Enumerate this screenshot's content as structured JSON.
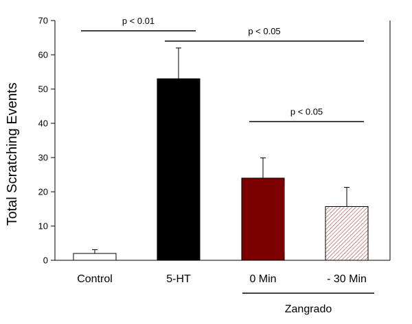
{
  "chart_data": {
    "type": "bar",
    "ylabel": "Total Scratching Events",
    "xlabel": "",
    "ylim": [
      0,
      70
    ],
    "yticks": [
      0,
      10,
      20,
      30,
      40,
      50,
      60,
      70
    ],
    "grid": false,
    "categories": [
      "Control",
      "5-HT",
      "0 Min",
      "- 30 Min"
    ],
    "values": [
      2,
      53,
      24,
      15.7
    ],
    "error_upper": [
      3.1,
      62,
      29.9,
      21.3
    ],
    "bar_styles": [
      {
        "fill": "#ffffff",
        "pattern": "none"
      },
      {
        "fill": "#000000",
        "pattern": "none"
      },
      {
        "fill": "#7d0000",
        "pattern": "none"
      },
      {
        "fill": "#ffffff",
        "pattern": "diagonal-hatch",
        "hatch_color": "#b04040"
      }
    ],
    "significance": [
      {
        "from": 0,
        "to": 1,
        "label": "p < 0.01",
        "y": 67
      },
      {
        "from": 1,
        "to": 3,
        "label": "p < 0.05",
        "y": 64
      },
      {
        "from": 2,
        "to": 3,
        "label": "p < 0.05",
        "y": 40.5
      }
    ],
    "group_label": {
      "text": "Zangrado",
      "from": 2,
      "to": 3
    }
  }
}
